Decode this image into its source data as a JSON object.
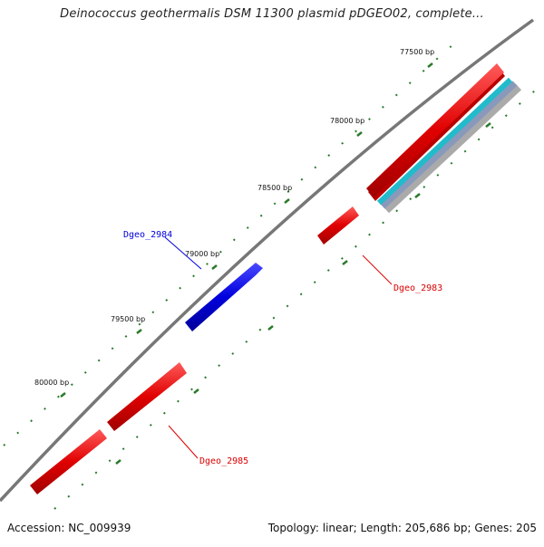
{
  "title": "Deinococcus geothermalis DSM 11300 plasmid pDGEO02, complete...",
  "footer": {
    "accession": "Accession: NC_009939",
    "summary": "Topology: linear; Length: 205,686 bp; Genes: 205"
  },
  "ticks": [
    "77500 bp",
    "78000 bp",
    "78500 bp",
    "79000 bp",
    "79500 bp",
    "80000 bp"
  ],
  "genes": [
    {
      "id": "Dgeo_2983",
      "color": "#e00000"
    },
    {
      "id": "Dgeo_2984",
      "color": "#0000dd"
    },
    {
      "id": "Dgeo_2985",
      "color": "#e00000"
    }
  ],
  "colors": {
    "backbone": "#777777",
    "forward": "#e00000",
    "reverse": "#0000dd",
    "track_cyan": "#22bbcc",
    "track_steel": "#8899bb",
    "tick": "#2a7a2a"
  }
}
